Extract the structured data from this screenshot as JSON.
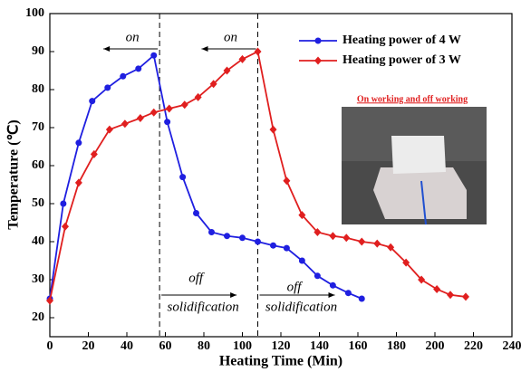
{
  "chart_data": {
    "type": "line",
    "x_label": "Heating Time (Min)",
    "y_label": "Temperature (℃)",
    "xlim": [
      0,
      240
    ],
    "xticks": [
      0,
      20,
      40,
      60,
      80,
      100,
      120,
      140,
      160,
      180,
      200,
      220,
      240
    ],
    "ylim": [
      15,
      100
    ],
    "yticks": [
      20,
      30,
      40,
      50,
      60,
      70,
      80,
      90,
      100
    ],
    "vlines": [
      57,
      108
    ],
    "annotations": [
      "on",
      "on",
      "off",
      "solidification",
      "off",
      "solidification"
    ],
    "inset_title": "On working and off working",
    "series": [
      {
        "name": "Heating power of 4 W",
        "color": "#1f1fe0",
        "marker": "circle",
        "x": [
          0,
          7,
          15,
          22,
          30,
          38,
          46,
          54,
          61,
          69,
          76,
          84,
          92,
          100,
          108,
          116,
          123,
          131,
          139,
          147,
          155,
          162
        ],
        "values": [
          25,
          50,
          66,
          77,
          80.5,
          83.5,
          85.5,
          89,
          71.5,
          57,
          47.5,
          42.5,
          41.5,
          41,
          40,
          39,
          38.3,
          35,
          31,
          28.5,
          26.5,
          25
        ]
      },
      {
        "name": "Heating power of 3 W",
        "color": "#e01f1f",
        "marker": "diamond",
        "x": [
          0,
          8,
          15,
          23,
          31,
          39,
          47,
          54,
          62,
          70,
          77,
          85,
          92,
          100,
          108,
          116,
          123,
          131,
          139,
          147,
          154,
          162,
          170,
          177,
          185,
          193,
          201,
          208,
          216
        ],
        "values": [
          24.5,
          44,
          55.5,
          63,
          69.5,
          71,
          72.5,
          74,
          75,
          76,
          78,
          81.5,
          85,
          88,
          90,
          69.5,
          56,
          47,
          42.5,
          41.5,
          41,
          40,
          39.5,
          38.5,
          34.5,
          30,
          27.5,
          26,
          25.5
        ]
      }
    ]
  }
}
